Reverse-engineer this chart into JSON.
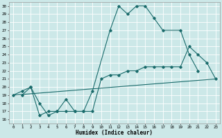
{
  "background_color": "#cce8e8",
  "grid_color": "#ffffff",
  "line_color": "#1a6b6b",
  "xlabel": "Humidex (Indice chaleur)",
  "xlim": [
    -0.5,
    23.5
  ],
  "ylim": [
    15.5,
    30.5
  ],
  "yticks": [
    16,
    17,
    18,
    19,
    20,
    21,
    22,
    23,
    24,
    25,
    26,
    27,
    28,
    29,
    30
  ],
  "xticks": [
    0,
    1,
    2,
    3,
    4,
    5,
    6,
    7,
    8,
    9,
    10,
    11,
    12,
    13,
    14,
    15,
    16,
    17,
    18,
    19,
    20,
    21,
    22,
    23
  ],
  "line1_x": [
    1,
    2,
    3,
    4,
    5,
    6,
    7,
    8,
    9,
    11,
    12,
    13,
    14,
    15,
    16,
    17,
    19,
    20,
    21
  ],
  "line1_y": [
    19,
    20,
    16.5,
    17,
    17,
    18.5,
    17,
    17,
    19.5,
    27,
    30,
    29,
    30,
    30,
    28.5,
    27,
    27,
    24,
    22
  ],
  "line2_x": [
    0,
    1,
    2,
    3,
    4,
    5,
    6,
    7,
    8,
    9,
    10,
    11,
    12,
    13,
    14,
    15,
    16,
    17,
    18,
    19,
    20,
    21,
    22,
    23
  ],
  "line2_y": [
    19,
    19.5,
    20,
    18,
    16.5,
    17,
    17,
    17,
    17,
    17,
    21,
    21.5,
    21.5,
    22,
    22,
    22.5,
    22.5,
    22.5,
    22.5,
    22.5,
    25,
    24,
    23,
    21
  ],
  "line3_x": [
    0,
    23
  ],
  "line3_y": [
    19,
    21
  ]
}
